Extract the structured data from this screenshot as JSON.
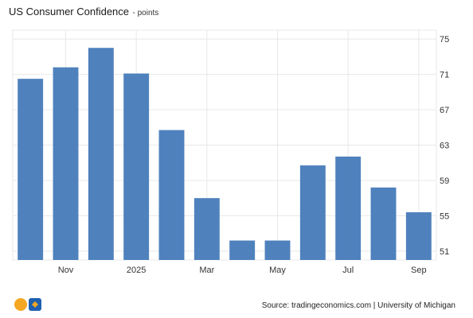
{
  "header": {
    "title": "US Consumer Confidence",
    "units": "- points"
  },
  "footer": {
    "source": "Source: tradingeconomics.com | University of Michigan"
  },
  "colors": {
    "bar": "#4f81bd",
    "grid": "#e8e8e8",
    "axis_text": "#333333",
    "logo_orange": "#f5a623",
    "logo_blue": "#1f5fae"
  },
  "icons": {
    "logo": "tradingeconomics-logo-icon"
  },
  "chart_data": {
    "type": "bar",
    "categories": [
      "Oct 2024",
      "Nov 2024",
      "Dec 2024",
      "Jan 2025",
      "Feb 2025",
      "Mar 2025",
      "Apr 2025",
      "May 2025",
      "Jun 2025",
      "Jul 2025",
      "Aug 2025",
      "Sep 2025"
    ],
    "values": [
      70.5,
      71.8,
      74.0,
      71.1,
      64.7,
      57.0,
      52.2,
      52.2,
      60.7,
      61.7,
      58.2,
      55.4
    ],
    "x_tick_labels": [
      {
        "index": 1,
        "label": "Nov"
      },
      {
        "index": 3,
        "label": "2025"
      },
      {
        "index": 5,
        "label": "Mar"
      },
      {
        "index": 7,
        "label": "May"
      },
      {
        "index": 9,
        "label": "Jul"
      },
      {
        "index": 11,
        "label": "Sep"
      }
    ],
    "y_ticks": [
      51,
      55,
      59,
      63,
      67,
      71,
      75
    ],
    "ylim": [
      50,
      76
    ],
    "y_axis_position": "right",
    "grid": true,
    "title": "US Consumer Confidence",
    "xlabel": "",
    "ylabel": ""
  }
}
